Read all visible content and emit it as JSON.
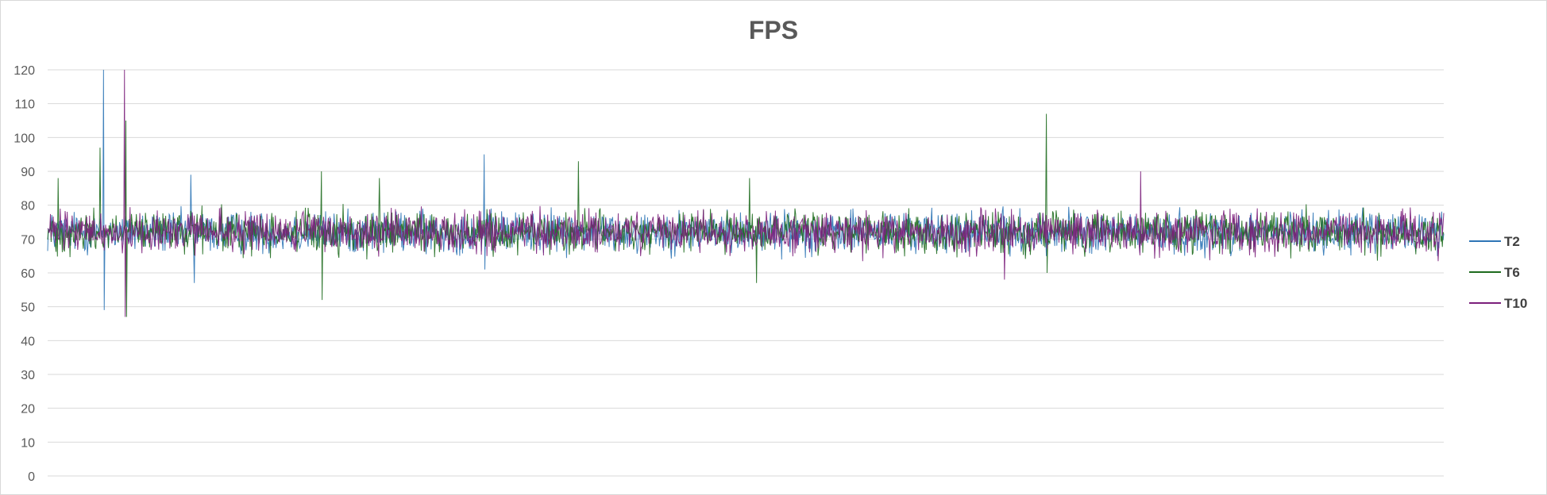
{
  "chart_data": {
    "type": "line",
    "title": "FPS",
    "xlabel": "",
    "ylabel": "",
    "ylim": [
      0,
      120
    ],
    "yticks": [
      0,
      10,
      20,
      30,
      40,
      50,
      60,
      70,
      80,
      90,
      100,
      110,
      120
    ],
    "grid": true,
    "legend_position": "right",
    "series": [
      {
        "name": "T2",
        "color": "#2e75b6",
        "typical_range": [
          63,
          81
        ],
        "approx_mean": 72,
        "points": 2000,
        "notable_points": [
          {
            "x": 80,
            "y": 120
          },
          {
            "x": 81,
            "y": 49
          },
          {
            "x": 205,
            "y": 89
          },
          {
            "x": 210,
            "y": 57
          },
          {
            "x": 625,
            "y": 95
          },
          {
            "x": 626,
            "y": 61
          }
        ]
      },
      {
        "name": "T6",
        "color": "#1e6b1e",
        "typical_range": [
          63,
          81
        ],
        "approx_mean": 72,
        "points": 2000,
        "notable_points": [
          {
            "x": 15,
            "y": 88
          },
          {
            "x": 75,
            "y": 97
          },
          {
            "x": 112,
            "y": 105
          },
          {
            "x": 113,
            "y": 47
          },
          {
            "x": 392,
            "y": 90
          },
          {
            "x": 393,
            "y": 52
          },
          {
            "x": 475,
            "y": 88
          },
          {
            "x": 760,
            "y": 93
          },
          {
            "x": 1005,
            "y": 88
          },
          {
            "x": 1015,
            "y": 57
          },
          {
            "x": 1430,
            "y": 107
          },
          {
            "x": 1431,
            "y": 60
          }
        ]
      },
      {
        "name": "T10",
        "color": "#7b1f7b",
        "typical_range": [
          63,
          81
        ],
        "approx_mean": 72,
        "points": 2000,
        "notable_points": [
          {
            "x": 110,
            "y": 120
          },
          {
            "x": 111,
            "y": 47
          },
          {
            "x": 1370,
            "y": 58
          },
          {
            "x": 1565,
            "y": 90
          }
        ]
      }
    ]
  }
}
